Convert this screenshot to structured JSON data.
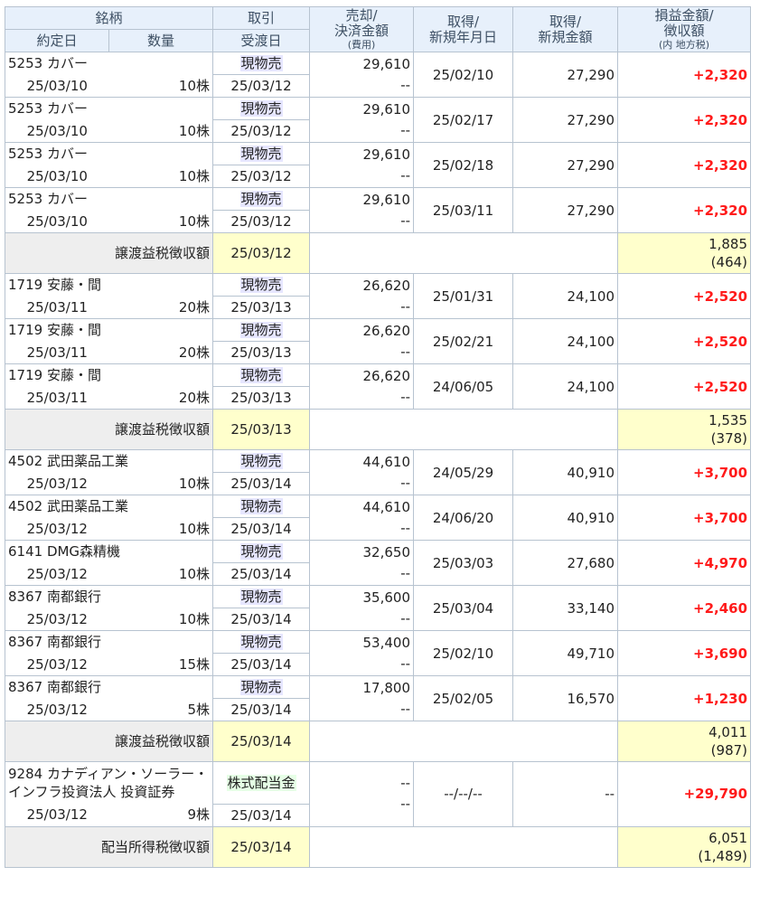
{
  "header": {
    "col1": "銘柄",
    "col1_sub1": "約定日",
    "col1_sub2": "数量",
    "col2": "取引",
    "col2_sub": "受渡日",
    "col3": "売却/",
    "col3_line2": "決済金額",
    "col3_small": "(費用)",
    "col4": "取得/",
    "col4_line2": "新規年月日",
    "col5": "取得/",
    "col5_line2": "新規金額",
    "col6": "損益金額/",
    "col6_line2": "徴収額",
    "col6_small": "(内 地方税)"
  },
  "groups": [
    {
      "trades": [
        {
          "name": "5253 カバー",
          "date": "25/03/10",
          "qty": "10株",
          "kind": "現物売",
          "settle": "25/03/12",
          "sell": "29,610",
          "fee": "--",
          "acq_date": "25/02/10",
          "acq_amt": "27,290",
          "profit": "+2,320"
        },
        {
          "name": "5253 カバー",
          "date": "25/03/10",
          "qty": "10株",
          "kind": "現物売",
          "settle": "25/03/12",
          "sell": "29,610",
          "fee": "--",
          "acq_date": "25/02/17",
          "acq_amt": "27,290",
          "profit": "+2,320"
        },
        {
          "name": "5253 カバー",
          "date": "25/03/10",
          "qty": "10株",
          "kind": "現物売",
          "settle": "25/03/12",
          "sell": "29,610",
          "fee": "--",
          "acq_date": "25/02/18",
          "acq_amt": "27,290",
          "profit": "+2,320"
        },
        {
          "name": "5253 カバー",
          "date": "25/03/10",
          "qty": "10株",
          "kind": "現物売",
          "settle": "25/03/12",
          "sell": "29,610",
          "fee": "--",
          "acq_date": "25/03/11",
          "acq_amt": "27,290",
          "profit": "+2,320"
        }
      ],
      "tax": {
        "label": "譲渡益税徴収額",
        "date": "25/03/12",
        "amount": "1,885",
        "local": "(464)"
      }
    },
    {
      "trades": [
        {
          "name": "1719 安藤・間",
          "date": "25/03/11",
          "qty": "20株",
          "kind": "現物売",
          "settle": "25/03/13",
          "sell": "26,620",
          "fee": "--",
          "acq_date": "25/01/31",
          "acq_amt": "24,100",
          "profit": "+2,520"
        },
        {
          "name": "1719 安藤・間",
          "date": "25/03/11",
          "qty": "20株",
          "kind": "現物売",
          "settle": "25/03/13",
          "sell": "26,620",
          "fee": "--",
          "acq_date": "25/02/21",
          "acq_amt": "24,100",
          "profit": "+2,520"
        },
        {
          "name": "1719 安藤・間",
          "date": "25/03/11",
          "qty": "20株",
          "kind": "現物売",
          "settle": "25/03/13",
          "sell": "26,620",
          "fee": "--",
          "acq_date": "24/06/05",
          "acq_amt": "24,100",
          "profit": "+2,520"
        }
      ],
      "tax": {
        "label": "譲渡益税徴収額",
        "date": "25/03/13",
        "amount": "1,535",
        "local": "(378)"
      }
    },
    {
      "trades": [
        {
          "name": "4502 武田薬品工業",
          "date": "25/03/12",
          "qty": "10株",
          "kind": "現物売",
          "settle": "25/03/14",
          "sell": "44,610",
          "fee": "--",
          "acq_date": "24/05/29",
          "acq_amt": "40,910",
          "profit": "+3,700"
        },
        {
          "name": "4502 武田薬品工業",
          "date": "25/03/12",
          "qty": "10株",
          "kind": "現物売",
          "settle": "25/03/14",
          "sell": "44,610",
          "fee": "--",
          "acq_date": "24/06/20",
          "acq_amt": "40,910",
          "profit": "+3,700"
        },
        {
          "name": "6141 DMG森精機",
          "date": "25/03/12",
          "qty": "10株",
          "kind": "現物売",
          "settle": "25/03/14",
          "sell": "32,650",
          "fee": "--",
          "acq_date": "25/03/03",
          "acq_amt": "27,680",
          "profit": "+4,970"
        },
        {
          "name": "8367 南都銀行",
          "date": "25/03/12",
          "qty": "10株",
          "kind": "現物売",
          "settle": "25/03/14",
          "sell": "35,600",
          "fee": "--",
          "acq_date": "25/03/04",
          "acq_amt": "33,140",
          "profit": "+2,460"
        },
        {
          "name": "8367 南都銀行",
          "date": "25/03/12",
          "qty": "15株",
          "kind": "現物売",
          "settle": "25/03/14",
          "sell": "53,400",
          "fee": "--",
          "acq_date": "25/02/10",
          "acq_amt": "49,710",
          "profit": "+3,690"
        },
        {
          "name": "8367 南都銀行",
          "date": "25/03/12",
          "qty": "5株",
          "kind": "現物売",
          "settle": "25/03/14",
          "sell": "17,800",
          "fee": "--",
          "acq_date": "25/02/05",
          "acq_amt": "16,570",
          "profit": "+1,230"
        }
      ],
      "tax": {
        "label": "譲渡益税徴収額",
        "date": "25/03/14",
        "amount": "4,011",
        "local": "(987)"
      }
    }
  ],
  "dividend": {
    "name_line1": "9284 カナディアン・ソーラー・",
    "name_line2": "インフラ投資法人 投資証券",
    "kind": "株式配当金",
    "date": "25/03/12",
    "qty": "9株",
    "settle": "25/03/14",
    "sell": "--",
    "fee": "--",
    "acq_date": "--/--/--",
    "acq_amt": "--",
    "profit": "+29,790"
  },
  "dividend_tax": {
    "label": "配当所得税徴収額",
    "date": "25/03/14",
    "amount": "6,051",
    "local": "(1,489)"
  },
  "colors": {
    "header_bg": "#e7f0fb",
    "tax_bg": "#eeeeee",
    "highlight_bg": "#ffffcc",
    "profit": "#ff1a1a",
    "trade_tag": "#e6e6ff",
    "dividend_tag": "#e6ffe6"
  }
}
